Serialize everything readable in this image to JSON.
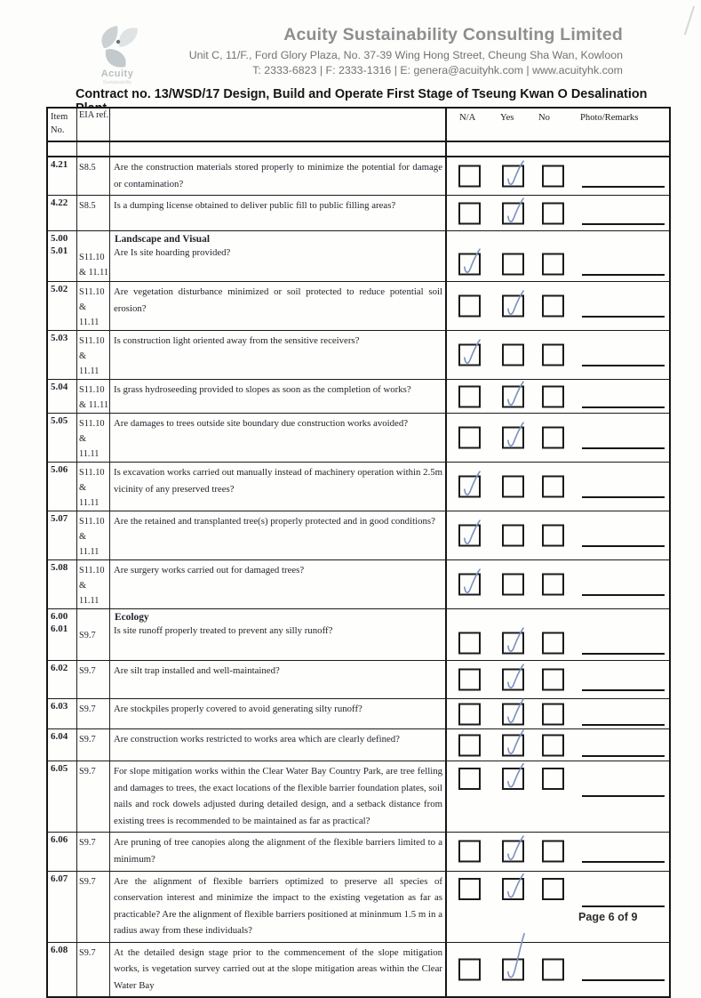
{
  "page": {
    "header": {
      "logo": {
        "text": "Acuity",
        "subtext": "Sustainability"
      },
      "company_name": "Acuity Sustainability Consulting Limited",
      "address": "Unit C, 11/F., Ford Glory Plaza, No. 37-39 Wing Hong Street, Cheung Sha Wan, Kowloon",
      "contact": "T: 2333-6823 | F: 2333-1316 | E: genera@acuityhk.com | www.acuityhk.com"
    },
    "title": "Contract no. 13/WSD/17 Design, Build and Operate First Stage of Tseung Kwan O Desalination Plant",
    "footer": {
      "page_label": "Page 6 of 9"
    }
  },
  "table": {
    "headers": {
      "item": "Item\nNo.",
      "eia": "EIA ref.",
      "na": "N/A",
      "yes": "Yes",
      "no": "No",
      "photo": "Photo/Remarks"
    },
    "check_ink_color": "#7e92bf",
    "rows": [
      {
        "item": "4.21",
        "eia": "S8.5",
        "question": "Are the construction materials stored properly to minimize the potential for damage or contamination?",
        "checked": "yes"
      },
      {
        "item": "4.22",
        "eia": "S8.5",
        "question": "Is a dumping license obtained to deliver public fill to public filling areas?",
        "checked": "yes"
      },
      {
        "section_item": "5.00",
        "section_title": "Landscape and Visual",
        "item": "5.01",
        "eia": "S11.10\n& 11.11",
        "question": "Are Is site hoarding provided?",
        "checked": "na"
      },
      {
        "item": "5.02",
        "eia": "S11.10 &\n11.11",
        "question": "Are vegetation disturbance minimized or soil protected to reduce potential soil erosion?",
        "checked": "yes"
      },
      {
        "item": "5.03",
        "eia": "S11.10 &\n11.11",
        "question": "Is construction light oriented away from the sensitive receivers?",
        "checked": "na"
      },
      {
        "item": "5.04",
        "eia": "S11.10\n& 11.11",
        "question": "Is grass hydroseeding provided to slopes as soon as the completion of works?",
        "checked": "yes"
      },
      {
        "item": "5.05",
        "eia": "S11.10 &\n11.11",
        "question": "Are damages to trees outside site boundary due construction works avoided?",
        "checked": "yes"
      },
      {
        "item": "5.06",
        "eia": "S11.10 &\n11.11",
        "question": "Is excavation works carried out manually instead of machinery operation within 2.5m vicinity of any preserved trees?",
        "checked": "na"
      },
      {
        "item": "5.07",
        "eia": "S11.10 &\n11.11",
        "question": "Are the retained and transplanted tree(s) properly protected and in good conditions?",
        "checked": "na"
      },
      {
        "item": "5.08",
        "eia": "S11.10 &\n11.11",
        "question": "Are surgery works carried out for damaged trees?",
        "checked": "na"
      },
      {
        "section_item": "6.00",
        "section_title": "Ecology",
        "item": "6.01",
        "eia": "S9.7",
        "question": "Is site runoff properly treated to prevent any silly runoff?",
        "checked": "yes"
      },
      {
        "item": "6.02",
        "eia": "S9.7",
        "question": "Are silt trap installed and well-maintained?",
        "checked": "yes"
      },
      {
        "item": "6.03",
        "eia": "S9.7",
        "question": "Are stockpiles properly covered to avoid generating silty runoff?",
        "checked": "yes"
      },
      {
        "item": "6.04",
        "eia": "S9.7",
        "question": "Are construction works restricted to works area which are clearly defined?",
        "checked": "yes"
      },
      {
        "item": "6.05",
        "eia": "S9.7",
        "question": "For slope mitigation works within the Clear Water Bay Country Park, are tree felling and damages to trees, the exact locations of the flexible barrier foundation plates, soil nails and rock dowels adjusted during detailed design, and a setback distance from existing trees is recommended to be maintained as far as practical?",
        "checked": "yes"
      },
      {
        "item": "6.06",
        "eia": "S9.7",
        "question": "Are pruning of tree canopies along the alignment of the flexible barriers limited to a minimum?",
        "checked": "yes"
      },
      {
        "item": "6.07",
        "eia": "S9.7",
        "question": "Are the alignment of flexible barriers optimized to preserve all species of conservation interest and minimize the impact to the existing vegetation as far as practicable? Are the alignment of flexible barriers positioned at mininmum 1.5 m in a radius away from these individuals?",
        "checked": "yes"
      },
      {
        "item": "6.08",
        "eia": "S9.7",
        "question": "At the detailed design stage prior to the commencement of the slope mitigation works, is vegetation survey carried out at the slope mitigation areas within the Clear Water Bay",
        "checked": "yes"
      }
    ]
  }
}
